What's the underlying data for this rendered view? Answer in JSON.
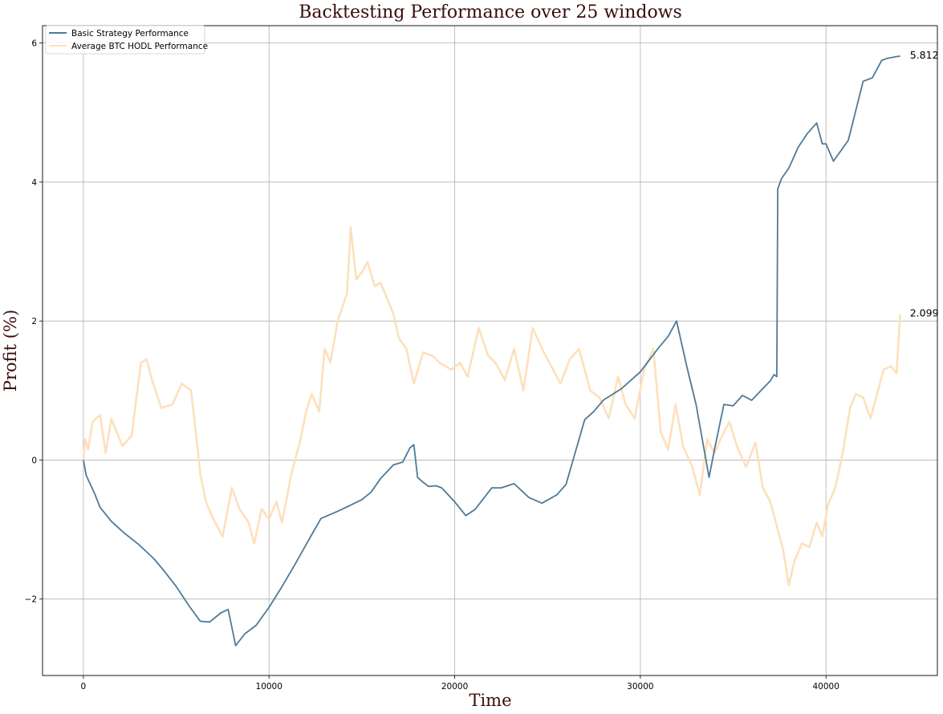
{
  "chart_data": {
    "type": "line",
    "title": "Backtesting Performance over 25 windows",
    "xlabel": "Time",
    "ylabel": "Profit (%)",
    "xlim": [
      -2200,
      46000
    ],
    "ylim": [
      -3.1,
      6.25
    ],
    "xticks": [
      0,
      10000,
      20000,
      30000,
      40000
    ],
    "yticks": [
      -2,
      0,
      2,
      4,
      6
    ],
    "grid": true,
    "legend_position": "top-left",
    "colors": {
      "strategy": "#4f7a96",
      "hodl": "#fde0bc",
      "grid": "#b0b0b0"
    },
    "series": [
      {
        "name": "Basic Strategy Performance",
        "end_label": "5.812",
        "x": [
          0,
          150,
          600,
          900,
          1500,
          2200,
          3000,
          3800,
          4300,
          5000,
          5700,
          6300,
          6800,
          7400,
          7800,
          8200,
          8700,
          9300,
          10000,
          10700,
          11400,
          12200,
          12800,
          13500,
          14000,
          15000,
          15500,
          16000,
          16700,
          17200,
          17600,
          17800,
          18000,
          18300,
          18600,
          19000,
          19300,
          20000,
          20600,
          21100,
          22000,
          22500,
          23200,
          24000,
          24700,
          25500,
          26000,
          27000,
          27500,
          28000,
          29000,
          30000,
          31000,
          31500,
          31950,
          32500,
          33000,
          33700,
          34000,
          34500,
          35000,
          35500,
          36000,
          36500,
          37000,
          37200,
          37350,
          37400,
          37600,
          38000,
          38500,
          39000,
          39500,
          39800,
          40000,
          40400,
          41200,
          42000,
          42500,
          43000,
          43300,
          43700,
          44000
        ],
        "y": [
          0,
          -0.22,
          -0.48,
          -0.68,
          -0.88,
          -1.05,
          -1.22,
          -1.42,
          -1.58,
          -1.82,
          -2.1,
          -2.32,
          -2.33,
          -2.2,
          -2.15,
          -2.67,
          -2.5,
          -2.38,
          -2.12,
          -1.82,
          -1.5,
          -1.12,
          -0.84,
          -0.76,
          -0.7,
          -0.57,
          -0.46,
          -0.27,
          -0.07,
          -0.03,
          0.18,
          0.22,
          -0.25,
          -0.32,
          -0.38,
          -0.37,
          -0.4,
          -0.6,
          -0.8,
          -0.71,
          -0.4,
          -0.4,
          -0.34,
          -0.54,
          -0.62,
          -0.5,
          -0.35,
          0.58,
          0.7,
          0.86,
          1.03,
          1.27,
          1.62,
          1.78,
          2.0,
          1.35,
          0.8,
          -0.25,
          0.16,
          0.8,
          0.78,
          0.93,
          0.86,
          1.0,
          1.14,
          1.23,
          1.2,
          3.9,
          4.05,
          4.2,
          4.5,
          4.7,
          4.85,
          4.55,
          4.55,
          4.3,
          4.6,
          5.45,
          5.5,
          5.75,
          5.78,
          5.8,
          5.812
        ]
      },
      {
        "name": "Average BTC HODL Performance",
        "end_label": "2.099",
        "x": [
          0,
          100,
          250,
          500,
          900,
          1200,
          1500,
          2100,
          2600,
          3100,
          3400,
          3700,
          4200,
          4800,
          5300,
          5800,
          6100,
          6300,
          6600,
          7000,
          7500,
          8000,
          8400,
          8900,
          9200,
          9600,
          10000,
          10400,
          10700,
          11200,
          11700,
          12000,
          12300,
          12700,
          13000,
          13300,
          13700,
          14200,
          14400,
          14700,
          15000,
          15300,
          15700,
          16000,
          16400,
          16700,
          17000,
          17400,
          17800,
          18300,
          18800,
          19200,
          19800,
          20300,
          20700,
          21300,
          21800,
          22200,
          22700,
          23200,
          23700,
          24200,
          24800,
          25300,
          25700,
          26200,
          26700,
          27300,
          27800,
          28300,
          28800,
          29200,
          29700,
          30200,
          30700,
          31100,
          31500,
          31900,
          32300,
          32800,
          33200,
          33600,
          34000,
          34400,
          34800,
          35200,
          35700,
          36200,
          36600,
          37000,
          37400,
          37700,
          38000,
          38300,
          38700,
          39100,
          39500,
          39800,
          40100,
          40500,
          40900,
          41300,
          41600,
          42000,
          42400,
          42800,
          43100,
          43500,
          43800,
          44000
        ],
        "y": [
          0,
          0.3,
          0.15,
          0.55,
          0.65,
          0.1,
          0.6,
          0.2,
          0.35,
          1.4,
          1.45,
          1.15,
          0.75,
          0.8,
          1.1,
          1.0,
          0.3,
          -0.2,
          -0.6,
          -0.85,
          -1.1,
          -0.4,
          -0.7,
          -0.9,
          -1.2,
          -0.7,
          -0.85,
          -0.6,
          -0.9,
          -0.2,
          0.3,
          0.7,
          0.95,
          0.7,
          1.6,
          1.4,
          2.0,
          2.4,
          3.35,
          2.6,
          2.7,
          2.85,
          2.5,
          2.55,
          2.3,
          2.1,
          1.75,
          1.6,
          1.1,
          1.55,
          1.5,
          1.4,
          1.3,
          1.4,
          1.2,
          1.9,
          1.5,
          1.4,
          1.15,
          1.6,
          1.0,
          1.9,
          1.55,
          1.3,
          1.1,
          1.45,
          1.6,
          1.0,
          0.9,
          0.6,
          1.2,
          0.8,
          0.6,
          1.3,
          1.6,
          0.4,
          0.15,
          0.8,
          0.2,
          -0.1,
          -0.5,
          0.3,
          0.1,
          0.35,
          0.55,
          0.2,
          -0.1,
          0.25,
          -0.4,
          -0.6,
          -1.0,
          -1.3,
          -1.8,
          -1.45,
          -1.2,
          -1.25,
          -0.9,
          -1.1,
          -0.65,
          -0.4,
          0.1,
          0.75,
          0.95,
          0.9,
          0.6,
          1.0,
          1.3,
          1.35,
          1.25,
          2.099
        ]
      }
    ]
  }
}
